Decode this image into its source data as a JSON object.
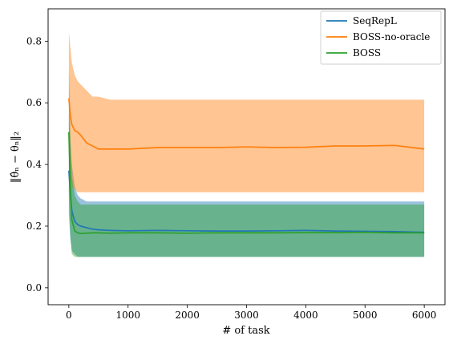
{
  "chart_data": {
    "type": "line",
    "xlabel": "# of task",
    "ylabel": "‖θ̂ₙ − θₙ‖₂",
    "xlim": [
      -350,
      6350
    ],
    "ylim": [
      -0.055,
      0.905
    ],
    "xticks": [
      0,
      1000,
      2000,
      3000,
      4000,
      5000,
      6000
    ],
    "yticks": [
      0.0,
      0.2,
      0.4,
      0.6,
      0.8
    ],
    "xtick_labels": [
      "0",
      "1000",
      "2000",
      "3000",
      "4000",
      "5000",
      "6000"
    ],
    "ytick_labels": [
      "0.0",
      "0.2",
      "0.4",
      "0.6",
      "0.8"
    ],
    "legend_position": "top-right",
    "grid": false,
    "band": "shaded min-max spread around each mean line",
    "x": [
      0,
      25,
      50,
      100,
      150,
      200,
      300,
      400,
      500,
      700,
      1000,
      1500,
      2000,
      2500,
      3000,
      3500,
      4000,
      4500,
      5000,
      5500,
      6000
    ],
    "series": [
      {
        "name": "SeqRepL",
        "color": "#1f77b4",
        "values": [
          0.38,
          0.31,
          0.25,
          0.215,
          0.205,
          0.2,
          0.195,
          0.19,
          0.188,
          0.186,
          0.185,
          0.186,
          0.185,
          0.184,
          0.184,
          0.185,
          0.186,
          0.184,
          0.183,
          0.182,
          0.18
        ],
        "band_low": [
          0.24,
          0.16,
          0.12,
          0.11,
          0.1,
          0.1,
          0.1,
          0.1,
          0.1,
          0.1,
          0.1,
          0.1,
          0.1,
          0.1,
          0.1,
          0.1,
          0.1,
          0.1,
          0.1,
          0.1,
          0.1
        ],
        "band_high": [
          0.56,
          0.48,
          0.4,
          0.33,
          0.3,
          0.29,
          0.28,
          0.28,
          0.28,
          0.28,
          0.28,
          0.28,
          0.28,
          0.28,
          0.28,
          0.28,
          0.28,
          0.28,
          0.28,
          0.28,
          0.28
        ]
      },
      {
        "name": "BOSS-no-oracle",
        "color": "#ff7f0e",
        "values": [
          0.615,
          0.56,
          0.53,
          0.51,
          0.505,
          0.495,
          0.47,
          0.46,
          0.45,
          0.45,
          0.45,
          0.455,
          0.455,
          0.455,
          0.457,
          0.455,
          0.456,
          0.46,
          0.46,
          0.462,
          0.45
        ],
        "band_low": [
          0.4,
          0.36,
          0.33,
          0.32,
          0.31,
          0.31,
          0.31,
          0.31,
          0.31,
          0.31,
          0.31,
          0.31,
          0.31,
          0.31,
          0.31,
          0.31,
          0.31,
          0.31,
          0.31,
          0.31,
          0.31
        ],
        "band_high": [
          0.83,
          0.78,
          0.73,
          0.69,
          0.67,
          0.66,
          0.64,
          0.62,
          0.62,
          0.61,
          0.61,
          0.61,
          0.61,
          0.61,
          0.61,
          0.61,
          0.61,
          0.61,
          0.61,
          0.61,
          0.61
        ]
      },
      {
        "name": "BOSS",
        "color": "#2ca02c",
        "values": [
          0.505,
          0.33,
          0.22,
          0.185,
          0.178,
          0.176,
          0.177,
          0.178,
          0.178,
          0.177,
          0.178,
          0.178,
          0.177,
          0.178,
          0.178,
          0.178,
          0.179,
          0.179,
          0.18,
          0.178,
          0.178
        ],
        "band_low": [
          0.3,
          0.17,
          0.11,
          0.1,
          0.1,
          0.1,
          0.1,
          0.1,
          0.1,
          0.1,
          0.1,
          0.1,
          0.1,
          0.1,
          0.1,
          0.1,
          0.1,
          0.1,
          0.1,
          0.1,
          0.1
        ],
        "band_high": [
          0.71,
          0.5,
          0.36,
          0.3,
          0.28,
          0.27,
          0.27,
          0.27,
          0.27,
          0.27,
          0.27,
          0.27,
          0.27,
          0.27,
          0.27,
          0.27,
          0.27,
          0.27,
          0.27,
          0.27,
          0.27
        ]
      }
    ]
  }
}
